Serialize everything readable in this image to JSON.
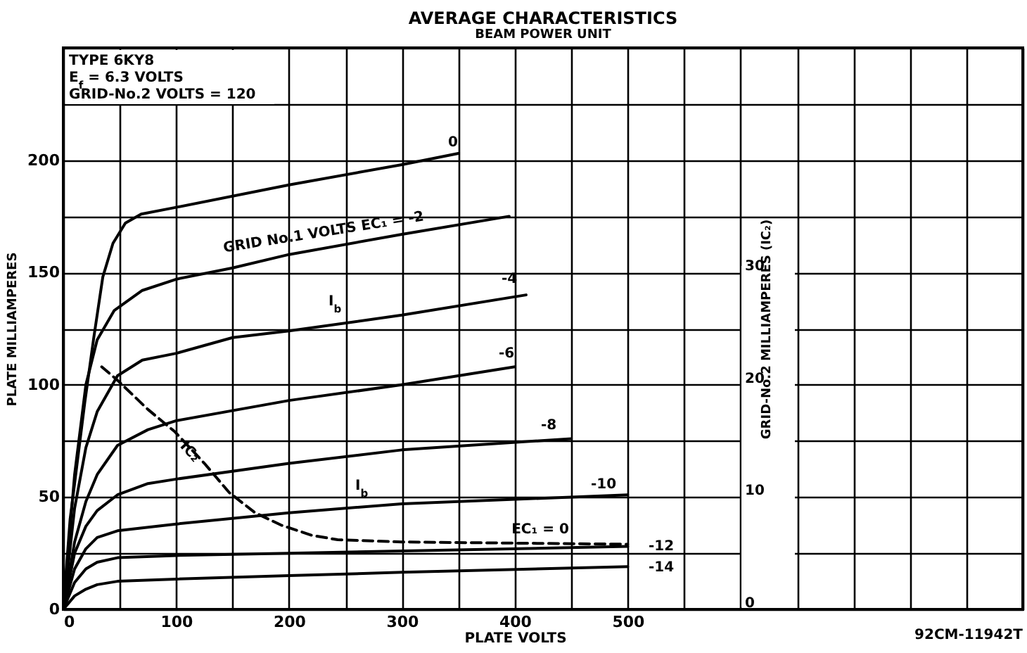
{
  "chart_data": {
    "type": "line",
    "title": "AVERAGE CHARACTERISTICS",
    "subtitle": "BEAM POWER UNIT",
    "xlabel": "PLATE VOLTS",
    "ylabel": "PLATE MILLIAMPERES",
    "y2label": "GRID-No.2 MILLIAMPERES (IC₂)",
    "xlim": [
      0,
      850
    ],
    "ylim": [
      0,
      250
    ],
    "y2lim": [
      0,
      50
    ],
    "xticks": [
      0,
      {
        "value": 50,
        "label": null
      },
      100,
      {
        "value": 150,
        "label": null
      },
      200,
      {
        "value": 250,
        "label": null
      },
      300,
      {
        "value": 350,
        "label": null
      },
      400,
      {
        "value": 450,
        "label": null
      },
      500,
      {
        "value": 550,
        "label": null
      },
      {
        "value": 600,
        "label": null
      },
      {
        "value": 650,
        "label": null
      },
      {
        "value": 700,
        "label": null
      },
      {
        "value": 750,
        "label": null
      },
      {
        "value": 800,
        "label": null
      },
      {
        "value": 850,
        "label": null
      }
    ],
    "yticks": [
      0,
      {
        "value": 25,
        "label": null
      },
      50,
      {
        "value": 75,
        "label": null
      },
      100,
      {
        "value": 125,
        "label": null
      },
      150,
      {
        "value": 175,
        "label": null
      },
      200,
      {
        "value": 225,
        "label": null
      },
      {
        "value": 250,
        "label": null
      }
    ],
    "y2ticks": [
      0,
      10,
      20,
      30
    ],
    "grid": true,
    "series": [
      {
        "color": "#000000",
        "x": [
          0,
          6,
          19,
          27,
          35,
          44,
          55,
          69,
          100,
          200,
          300,
          350
        ],
        "values": [
          0,
          40,
          92,
          121,
          148,
          163,
          172,
          176,
          179,
          189,
          198,
          203
        ]
      },
      {
        "color": "#000000",
        "x": [
          0,
          10,
          20,
          30,
          45,
          70,
          100,
          150,
          200,
          300,
          395
        ],
        "values": [
          0,
          60,
          100,
          120,
          133,
          142,
          147,
          152,
          158,
          167,
          175
        ]
      },
      {
        "color": "#000000",
        "x": [
          0,
          10,
          20,
          30,
          48,
          70,
          100,
          150,
          200,
          300,
          410
        ],
        "values": [
          0,
          45,
          72,
          88,
          104,
          111,
          114,
          121,
          124,
          131,
          140
        ]
      },
      {
        "color": "#000000",
        "x": [
          0,
          10,
          20,
          30,
          48,
          75,
          100,
          200,
          300,
          400
        ],
        "values": [
          0,
          30,
          48,
          60,
          73,
          80,
          84,
          93,
          100,
          108
        ]
      },
      {
        "color": "#000000",
        "x": [
          0,
          10,
          20,
          30,
          48,
          75,
          100,
          200,
          300,
          450
        ],
        "values": [
          0,
          25,
          37,
          44,
          51,
          56,
          58,
          65,
          71,
          76
        ]
      },
      {
        "color": "#000000",
        "x": [
          0,
          10,
          20,
          30,
          48,
          100,
          200,
          300,
          500
        ],
        "values": [
          0,
          18,
          27,
          32,
          35,
          38,
          43,
          47,
          51
        ]
      },
      {
        "color": "#000000",
        "x": [
          0,
          10,
          20,
          30,
          48,
          100,
          200,
          300,
          500
        ],
        "values": [
          0,
          12,
          18,
          21,
          23,
          24,
          25,
          26,
          28
        ]
      },
      {
        "color": "#000000",
        "x": [
          0,
          10,
          20,
          30,
          48,
          100,
          200,
          300,
          500
        ],
        "values": [
          0,
          6,
          9,
          11,
          12.5,
          13.5,
          15,
          16.5,
          19
        ]
      },
      {
        "color": "#000000",
        "axis": "y2",
        "line_style": "dashed",
        "x": [
          34,
          48,
          75,
          99,
          125,
          147,
          170,
          193,
          220,
          243,
          300,
          400,
          500
        ],
        "values": [
          21.6,
          20.4,
          17.8,
          15.8,
          13,
          10.4,
          8.6,
          7.5,
          6.6,
          6.2,
          6.0,
          5.9,
          5.8
        ]
      }
    ],
    "annotations": [
      "TYPE 6KY8",
      "E$_{f}$ = 6.3 VOLTS",
      "GRID-No.2 VOLTS = 120",
      "0",
      "GRID No.1 VOLTS EC₁ = -2",
      "-4",
      "I$_{b}$",
      "-6",
      "-8",
      "-10",
      "I$_{b}$",
      "IC₂",
      "EC₁ = 0",
      "-12",
      "-14",
      "92CM-11942T"
    ]
  }
}
